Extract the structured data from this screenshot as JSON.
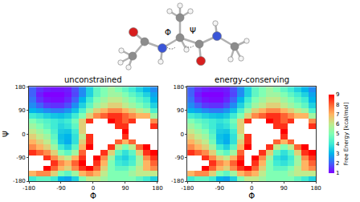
{
  "diagram": {
    "dihedral_labels": [
      "Φ",
      "Ψ"
    ]
  },
  "chart_data": [
    {
      "type": "heatmap",
      "title": "unconstrained",
      "xlabel": "Φ",
      "ylabel": "Ψ",
      "x": [
        -170,
        -150,
        -130,
        -110,
        -90,
        -70,
        -50,
        -30,
        -10,
        10,
        30,
        50,
        70,
        90,
        110,
        130,
        150,
        170
      ],
      "y": [
        -170,
        -150,
        -130,
        -110,
        -90,
        -70,
        -50,
        -30,
        -10,
        10,
        30,
        50,
        70,
        90,
        110,
        130,
        150,
        170
      ],
      "z": [
        [
          4,
          4.5,
          4.5,
          4,
          3,
          2.8,
          3.5,
          5,
          6,
          6,
          5.5,
          5,
          5,
          5,
          5,
          4.5,
          4,
          3.5
        ],
        [
          7,
          7.5,
          7.5,
          6.5,
          5,
          4.5,
          5.5,
          7,
          7.5,
          7,
          6,
          5,
          5,
          5,
          5.5,
          6,
          6,
          6
        ],
        [
          null,
          null,
          9,
          8,
          7,
          6.5,
          7.5,
          8.5,
          9,
          8,
          6.5,
          5,
          4.5,
          4.5,
          5,
          6,
          7,
          7.5
        ],
        [
          null,
          null,
          null,
          8.5,
          7.5,
          7,
          8,
          9,
          null,
          8.5,
          7,
          5,
          4,
          3.8,
          4.2,
          5.5,
          7,
          8
        ],
        [
          null,
          null,
          8.5,
          7.5,
          6.5,
          6,
          7,
          8.5,
          null,
          9,
          7.5,
          5.5,
          3.8,
          3.5,
          4,
          5.5,
          7.5,
          8.5
        ],
        [
          8.5,
          8,
          7.5,
          6.5,
          5,
          4.5,
          5.5,
          8,
          null,
          null,
          8.5,
          6.5,
          4.5,
          3.8,
          4.5,
          6.5,
          8.5,
          9
        ],
        [
          7.5,
          7,
          6.5,
          5.5,
          4,
          3.5,
          4.5,
          7,
          9,
          null,
          null,
          8.5,
          6,
          5,
          6,
          8,
          9,
          null
        ],
        [
          7,
          6.5,
          6,
          4.8,
          3.3,
          2.9,
          3.8,
          6.5,
          8.5,
          null,
          null,
          null,
          8,
          7,
          8,
          null,
          null,
          null
        ],
        [
          6.5,
          6,
          5.5,
          4.5,
          3.2,
          3,
          3.8,
          6,
          8.5,
          null,
          null,
          null,
          null,
          8.5,
          null,
          null,
          null,
          null
        ],
        [
          6,
          5.5,
          5,
          4.2,
          3.4,
          3.3,
          4,
          6.5,
          null,
          null,
          null,
          null,
          null,
          9,
          null,
          null,
          null,
          null
        ],
        [
          5.5,
          5,
          4.5,
          4,
          3.6,
          3.8,
          4.5,
          6.5,
          null,
          null,
          null,
          null,
          8.5,
          8.5,
          null,
          null,
          null,
          8.5
        ],
        [
          5,
          4.6,
          4.3,
          4,
          3.8,
          4,
          4.8,
          6.5,
          8.5,
          null,
          null,
          9,
          8.5,
          8,
          8.5,
          null,
          null,
          7.5
        ],
        [
          4,
          3.8,
          3.5,
          3.3,
          3.2,
          3.4,
          4,
          5,
          6.5,
          7.5,
          8,
          8.5,
          8.5,
          8,
          7.5,
          7,
          7,
          5.5
        ],
        [
          3,
          2.8,
          2.5,
          2.3,
          2.3,
          2.6,
          3.2,
          4.2,
          5.5,
          6.5,
          7,
          7.5,
          7.5,
          7,
          6.5,
          6,
          5.5,
          4.2
        ],
        [
          2.5,
          2,
          1.6,
          1.5,
          1.5,
          1.8,
          2.5,
          3.5,
          4.5,
          5.5,
          6,
          6.5,
          6.5,
          6,
          5.5,
          5,
          4.5,
          3.5
        ],
        [
          2.2,
          1.5,
          1.2,
          1.1,
          1.1,
          1.4,
          2,
          3,
          4,
          5,
          5.5,
          6,
          6,
          5.5,
          5,
          4.5,
          4,
          3
        ],
        [
          2,
          1.3,
          1,
          1,
          1,
          1.2,
          1.7,
          2.5,
          3.5,
          4.5,
          5,
          5.5,
          5.5,
          5,
          4.5,
          4,
          3.5,
          2.8
        ],
        [
          2,
          1.5,
          1.3,
          1.2,
          1.2,
          1.3,
          1.8,
          2.5,
          3.5,
          4.5,
          5,
          5.5,
          5,
          4.5,
          4,
          3.5,
          3,
          2.5
        ]
      ],
      "xlim": [
        -180,
        180
      ],
      "xticks": [
        -180,
        -90,
        0,
        90,
        180
      ],
      "ylim": [
        -180,
        180
      ],
      "yticks": [
        -180,
        -90,
        0,
        90,
        180
      ],
      "zlim": [
        1,
        9
      ]
    },
    {
      "type": "heatmap",
      "title": "energy-conserving",
      "xlabel": "Φ",
      "x": [
        -170,
        -150,
        -130,
        -110,
        -90,
        -70,
        -50,
        -30,
        -10,
        10,
        30,
        50,
        70,
        90,
        110,
        130,
        150,
        170
      ],
      "y": [
        -170,
        -150,
        -130,
        -110,
        -90,
        -70,
        -50,
        -30,
        -10,
        10,
        30,
        50,
        70,
        90,
        110,
        130,
        150,
        170
      ],
      "z": [
        [
          4,
          4.5,
          4.5,
          4,
          3,
          2.8,
          3.5,
          5,
          6,
          6,
          5.5,
          5,
          5,
          5,
          5,
          4.5,
          4,
          3.5
        ],
        [
          7,
          7.5,
          7.5,
          6.5,
          5,
          4.5,
          5.5,
          7,
          7.5,
          7,
          6,
          5,
          5,
          5,
          5.5,
          6,
          6,
          6
        ],
        [
          null,
          null,
          9,
          8,
          7,
          6.5,
          7.5,
          8.5,
          9,
          8,
          6.5,
          5,
          4.5,
          4.5,
          5,
          6,
          7,
          7.5
        ],
        [
          null,
          null,
          null,
          8.5,
          7.5,
          7,
          8,
          9,
          null,
          8.5,
          7,
          5,
          4,
          3.8,
          4.2,
          5.5,
          7,
          8
        ],
        [
          null,
          null,
          8.5,
          7.5,
          6.5,
          6,
          7,
          8.5,
          null,
          9,
          7.5,
          5.5,
          3.8,
          3.5,
          4,
          5.5,
          7.5,
          8.5
        ],
        [
          8.5,
          8,
          7.5,
          6.5,
          5,
          4.5,
          5.5,
          8,
          null,
          null,
          8.5,
          6.5,
          4.5,
          3.8,
          4.5,
          6.5,
          8.5,
          9
        ],
        [
          7.5,
          7,
          6.5,
          5.5,
          4,
          3.5,
          4.5,
          7,
          9,
          null,
          null,
          8.5,
          6,
          5,
          6,
          8,
          9,
          null
        ],
        [
          7,
          6.5,
          6,
          4.8,
          3.3,
          2.9,
          3.8,
          6.5,
          8.5,
          null,
          null,
          null,
          8,
          7,
          8,
          null,
          null,
          null
        ],
        [
          6.5,
          6,
          5.5,
          4.5,
          3.2,
          3,
          3.8,
          6,
          8.5,
          null,
          null,
          null,
          null,
          8.5,
          null,
          null,
          null,
          null
        ],
        [
          6,
          5.5,
          5,
          4.2,
          3.4,
          3.3,
          4,
          6.5,
          null,
          null,
          null,
          null,
          null,
          9,
          null,
          null,
          null,
          null
        ],
        [
          5.5,
          5,
          4.5,
          4,
          3.6,
          3.8,
          4.5,
          6.5,
          null,
          null,
          null,
          null,
          8.5,
          8.5,
          null,
          null,
          null,
          8.5
        ],
        [
          5,
          4.6,
          4.3,
          4,
          3.8,
          4,
          4.8,
          6.5,
          8.5,
          null,
          null,
          9,
          8.5,
          8,
          8.5,
          null,
          null,
          7.5
        ],
        [
          4,
          3.8,
          3.5,
          3.3,
          3.2,
          3.4,
          4,
          5,
          6.5,
          7.5,
          8,
          8.5,
          8.5,
          8,
          7.5,
          7,
          7,
          5.5
        ],
        [
          3,
          2.8,
          2.5,
          2.3,
          2.3,
          2.6,
          3.2,
          4.2,
          5.5,
          6.5,
          7,
          7.5,
          7.5,
          7,
          6.5,
          6,
          5.5,
          4.2
        ],
        [
          2.5,
          2,
          1.6,
          1.5,
          1.5,
          1.8,
          2.5,
          3.5,
          4.5,
          5.5,
          6,
          6.5,
          6.5,
          6,
          5.5,
          5,
          4.5,
          3.5
        ],
        [
          2.2,
          1.5,
          1.2,
          1.1,
          1.1,
          1.4,
          2,
          3,
          4,
          5,
          5.5,
          6,
          6,
          5.5,
          5,
          4.5,
          4,
          3
        ],
        [
          2,
          1.3,
          1,
          1,
          1,
          1.2,
          1.7,
          2.5,
          3.5,
          4.5,
          5,
          5.5,
          5.5,
          5,
          4.5,
          4,
          3.5,
          2.8
        ],
        [
          2,
          1.5,
          1.3,
          1.2,
          1.2,
          1.3,
          1.8,
          2.5,
          3.5,
          4.5,
          5,
          5.5,
          5,
          4.5,
          4,
          3.5,
          3,
          2.5
        ]
      ],
      "xlim": [
        -180,
        180
      ],
      "xticks": [
        -180,
        -90,
        0,
        90,
        180
      ],
      "ylim": [
        -180,
        180
      ],
      "yticks": [
        -180,
        -90,
        0,
        90,
        180
      ],
      "zlim": [
        1,
        9
      ],
      "zticks": [
        1,
        2,
        3,
        4,
        5,
        6,
        7,
        8,
        9
      ],
      "zlabel": "Free Energy [kcal/mol]"
    }
  ]
}
